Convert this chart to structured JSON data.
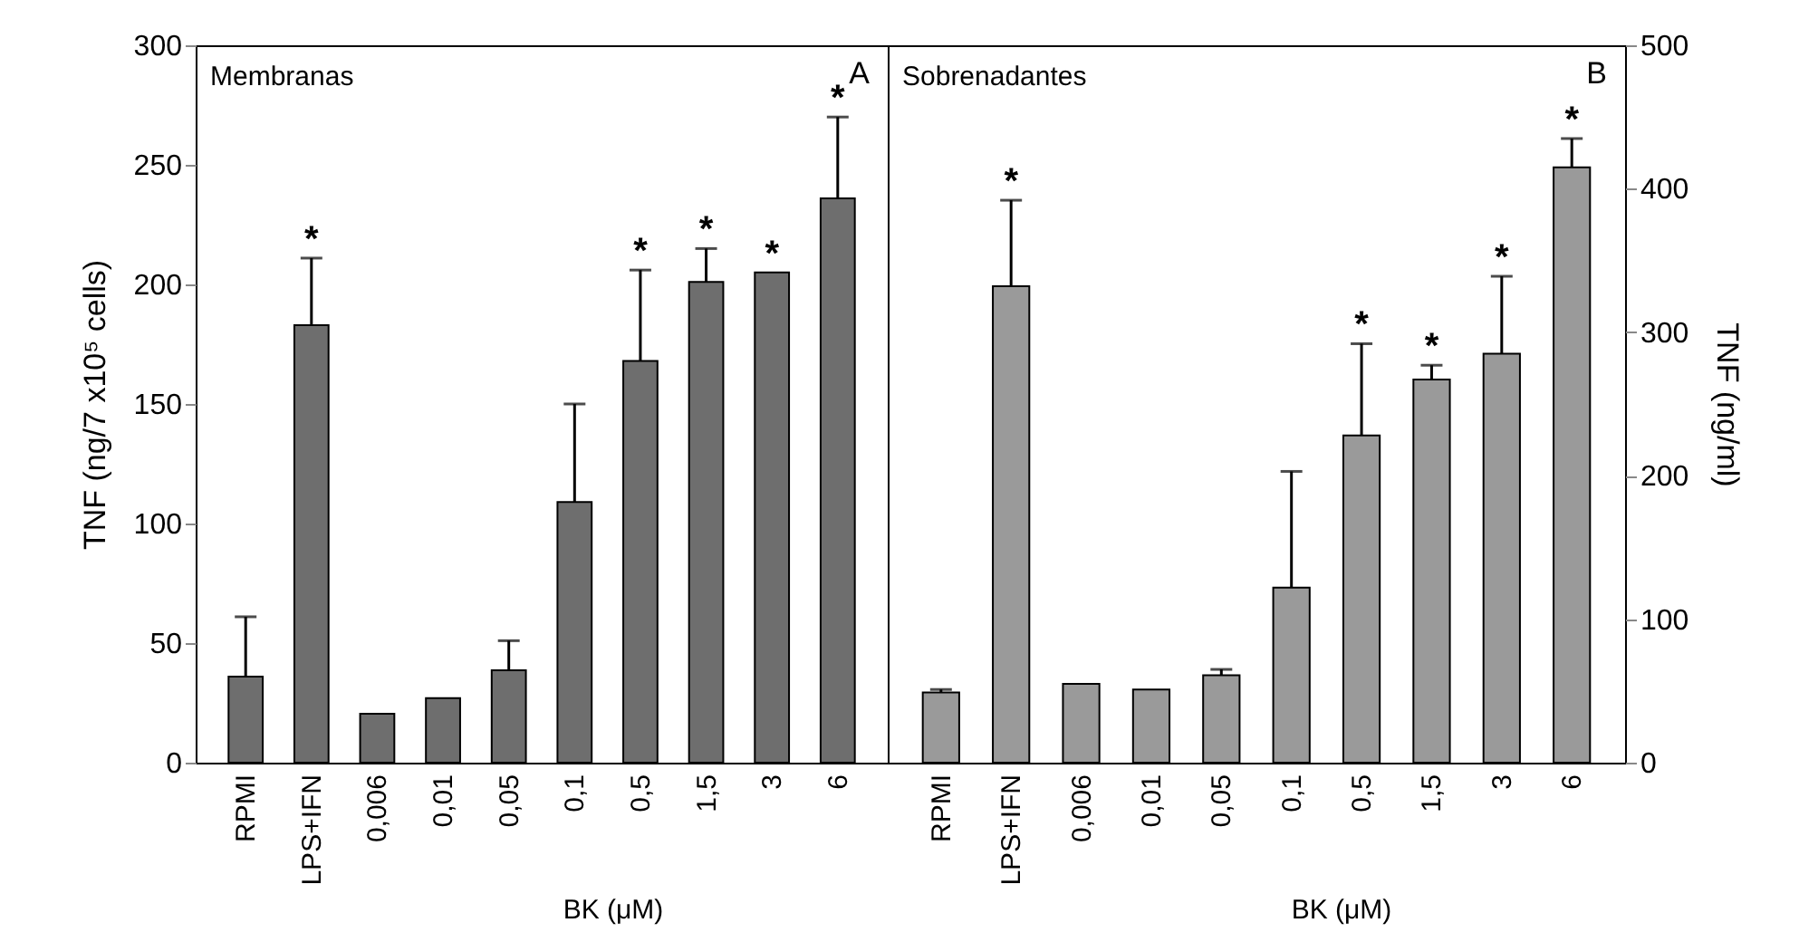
{
  "chart_data": [
    {
      "type": "bar",
      "title": "Membranas",
      "ylabel": "TNF (ng/7 x10⁵ cells)",
      "xlabel": "BK (μM)",
      "categories": [
        "RPMI",
        "LPS+IFN",
        "0,006",
        "0,01",
        "0,05",
        "0,1",
        "0,5",
        "1,5",
        "3",
        "6"
      ],
      "values": [
        36,
        183,
        20.5,
        27,
        38.6,
        109,
        168,
        201,
        205,
        236
      ],
      "errors": [
        [
          36,
          61
        ],
        [
          183,
          211
        ],
        null,
        null,
        [
          38.6,
          51
        ],
        [
          109,
          150
        ],
        [
          168,
          206
        ],
        [
          201,
          215
        ],
        null,
        [
          236,
          270
        ]
      ],
      "color": "#6e6e6e",
      "ylim": [
        0,
        300
      ],
      "yticks": [
        0,
        50,
        100,
        150,
        200,
        250,
        300
      ],
      "grid": false,
      "annotations": [
        "A",
        {
          "text": "*",
          "x": "LPS+IFN",
          "y": 211
        },
        {
          "text": "*",
          "x": "0,5",
          "y": 206
        },
        {
          "text": "*",
          "x": "1,5",
          "y": 215
        },
        {
          "text": "*",
          "x": "3",
          "y": 205
        },
        {
          "text": "*",
          "x": "6",
          "y": 270
        }
      ]
    },
    {
      "type": "bar",
      "title": "Sobrenadantes",
      "ylabel": "TNF (ng/ml)",
      "xlabel": "BK (μM)",
      "categories": [
        "RPMI",
        "LPS+IFN",
        "0,006",
        "0,01",
        "0,05",
        "0,1",
        "0,5",
        "1,5",
        "3",
        "6"
      ],
      "values": [
        49,
        332,
        55,
        51,
        61,
        122,
        228,
        267,
        285,
        415
      ],
      "errors": [
        [
          49,
          51
        ],
        [
          332,
          392
        ],
        null,
        null,
        [
          61,
          65
        ],
        [
          122,
          203
        ],
        [
          228,
          292
        ],
        [
          267,
          277
        ],
        [
          285,
          339
        ],
        [
          415,
          435
        ]
      ],
      "color": "#9a9a9a",
      "ylim": [
        0,
        500
      ],
      "yticks": [
        0,
        100,
        200,
        300,
        400,
        500
      ],
      "grid": false,
      "annotations": [
        "B",
        {
          "text": "*",
          "x": "LPS+IFN",
          "y": 392
        },
        {
          "text": "*",
          "x": "0,5",
          "y": 292
        },
        {
          "text": "*",
          "x": "1,5",
          "y": 277
        },
        {
          "text": "*",
          "x": "3",
          "y": 339
        },
        {
          "text": "*",
          "x": "6",
          "y": 435
        }
      ]
    }
  ]
}
